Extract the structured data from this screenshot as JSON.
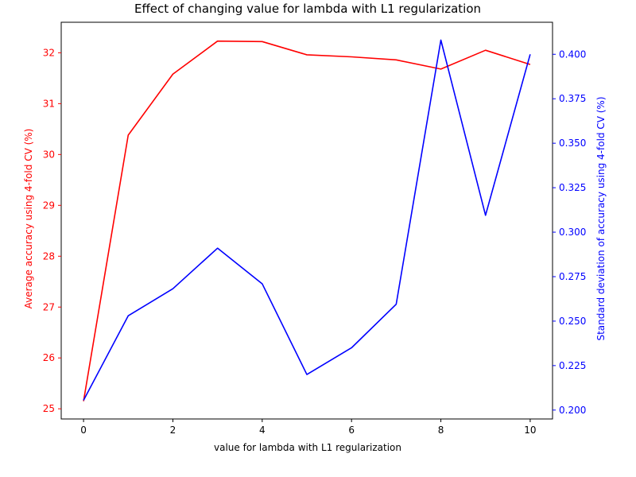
{
  "chart_data": {
    "type": "line",
    "title": "Effect of changing value for lambda with L1 regularization",
    "xlabel": "value for lambda with L1 regularization",
    "ylabel_left": "Average accuracy using 4-fold CV (%)",
    "ylabel_right": "Standard deviation of accuracy using 4-fold CV (%)",
    "x": [
      0,
      1,
      2,
      3,
      4,
      5,
      6,
      7,
      8,
      9,
      10
    ],
    "xlim": [
      -0.5,
      10.5
    ],
    "ylim_left": [
      24.8,
      32.6
    ],
    "ylim_right": [
      0.195,
      0.418
    ],
    "xticks": [
      "0",
      "2",
      "4",
      "6",
      "8",
      "10"
    ],
    "yticks_left": [
      "25",
      "26",
      "27",
      "28",
      "29",
      "30",
      "31",
      "32"
    ],
    "yticks_right": [
      "0.200",
      "0.225",
      "0.250",
      "0.275",
      "0.300",
      "0.325",
      "0.350",
      "0.375",
      "0.400"
    ],
    "grid": false,
    "series": [
      {
        "axis": "left",
        "color": "#ff0000",
        "values": [
          25.15,
          30.38,
          31.58,
          32.23,
          32.22,
          31.96,
          31.92,
          31.86,
          31.68,
          32.05,
          31.77
        ]
      },
      {
        "axis": "right",
        "color": "#0000ff",
        "values": [
          0.2055,
          0.253,
          0.2682,
          0.291,
          0.271,
          0.22,
          0.235,
          0.2595,
          0.408,
          0.3095,
          0.4
        ]
      }
    ]
  }
}
